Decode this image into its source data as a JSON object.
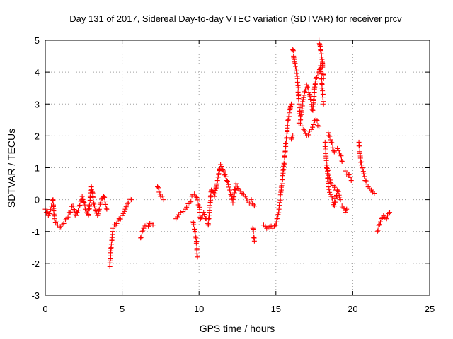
{
  "chart_data": {
    "type": "scatter",
    "title": "Day 131 of 2017, Sidereal Day-to-day VTEC variation (SDTVAR) for receiver prcv",
    "xlabel": "GPS time / hours",
    "ylabel": "SDTVAR / TECUs",
    "xlim": [
      0,
      25
    ],
    "ylim": [
      -3,
      5
    ],
    "xticks": [
      0,
      5,
      10,
      15,
      20,
      25
    ],
    "yticks": [
      -3,
      -2,
      -1,
      0,
      1,
      2,
      3,
      4,
      5
    ],
    "xtick_labels": [
      "0",
      "5",
      "10",
      "15",
      "20",
      "25"
    ],
    "ytick_labels": [
      "-3",
      "-2",
      "-1",
      "0",
      "1",
      "2",
      "3",
      "4",
      "5"
    ],
    "grid": true,
    "marker": "+",
    "color": "#ff0000",
    "series": [
      {
        "name": "SDTVAR",
        "segments": [
          [
            [
              0.0,
              -0.3
            ],
            [
              0.2,
              -0.5
            ],
            [
              0.4,
              -0.2
            ],
            [
              0.5,
              0.0
            ],
            [
              0.6,
              -0.6
            ],
            [
              0.8,
              -0.8
            ],
            [
              1.0,
              -0.85
            ],
            [
              1.2,
              -0.75
            ],
            [
              1.4,
              -0.6
            ],
            [
              1.6,
              -0.4
            ],
            [
              1.8,
              -0.2
            ],
            [
              2.0,
              -0.5
            ],
            [
              2.2,
              -0.2
            ],
            [
              2.4,
              0.1
            ],
            [
              2.6,
              -0.3
            ],
            [
              2.8,
              -0.5
            ],
            [
              3.0,
              0.4
            ],
            [
              3.2,
              -0.2
            ],
            [
              3.4,
              -0.5
            ],
            [
              3.6,
              -0.1
            ],
            [
              3.8,
              0.1
            ],
            [
              4.0,
              -0.3
            ]
          ],
          [
            [
              4.2,
              -2.1
            ],
            [
              4.3,
              -1.4
            ],
            [
              4.4,
              -0.9
            ],
            [
              4.6,
              -0.8
            ],
            [
              4.8,
              -0.6
            ],
            [
              5.0,
              -0.5
            ],
            [
              5.2,
              -0.3
            ],
            [
              5.4,
              -0.1
            ],
            [
              5.6,
              0.0
            ]
          ],
          [
            [
              6.2,
              -1.2
            ],
            [
              6.4,
              -0.9
            ],
            [
              6.6,
              -0.8
            ],
            [
              6.8,
              -0.75
            ],
            [
              7.0,
              -0.8
            ]
          ],
          [
            [
              7.3,
              0.4
            ],
            [
              7.5,
              0.1
            ],
            [
              7.7,
              0.0
            ]
          ],
          [
            [
              8.5,
              -0.6
            ],
            [
              8.8,
              -0.4
            ],
            [
              9.1,
              -0.3
            ],
            [
              9.4,
              -0.1
            ],
            [
              9.6,
              0.15
            ],
            [
              9.8,
              0.1
            ],
            [
              10.0,
              -0.2
            ],
            [
              10.1,
              -0.6
            ],
            [
              10.3,
              -0.4
            ],
            [
              10.6,
              -0.8
            ],
            [
              10.8,
              0.3
            ],
            [
              11.0,
              0.1
            ],
            [
              11.2,
              0.6
            ],
            [
              11.4,
              1.1
            ],
            [
              11.6,
              0.9
            ],
            [
              11.8,
              0.6
            ],
            [
              12.0,
              0.3
            ],
            [
              12.2,
              -0.1
            ],
            [
              12.4,
              0.5
            ],
            [
              12.6,
              0.3
            ],
            [
              12.8,
              0.2
            ],
            [
              13.0,
              0.1
            ],
            [
              13.2,
              -0.1
            ],
            [
              13.4,
              0.0
            ],
            [
              13.6,
              -0.2
            ]
          ],
          [
            [
              9.6,
              -0.7
            ],
            [
              9.8,
              -1.2
            ],
            [
              9.9,
              -1.8
            ]
          ],
          [
            [
              13.5,
              -0.9
            ],
            [
              13.6,
              -1.3
            ]
          ],
          [
            [
              14.2,
              -0.8
            ],
            [
              14.4,
              -0.9
            ],
            [
              14.6,
              -0.85
            ],
            [
              14.8,
              -0.9
            ],
            [
              15.0,
              -0.8
            ],
            [
              15.2,
              -0.3
            ],
            [
              15.4,
              0.5
            ],
            [
              15.6,
              1.5
            ],
            [
              15.8,
              2.5
            ],
            [
              16.0,
              3.0
            ]
          ],
          [
            [
              16.0,
              1.9
            ],
            [
              16.1,
              2.0
            ]
          ],
          [
            [
              16.1,
              4.7
            ],
            [
              16.2,
              4.4
            ],
            [
              16.4,
              3.8
            ],
            [
              16.5,
              3.0
            ],
            [
              16.6,
              2.5
            ],
            [
              16.8,
              3.2
            ],
            [
              17.0,
              3.6
            ],
            [
              17.2,
              3.3
            ],
            [
              17.4,
              2.8
            ],
            [
              17.6,
              3.8
            ],
            [
              17.8,
              4.0
            ],
            [
              17.9,
              4.2
            ],
            [
              18.0,
              3.5
            ],
            [
              18.1,
              3.0
            ]
          ],
          [
            [
              17.8,
              5.0
            ],
            [
              17.9,
              4.7
            ],
            [
              18.0,
              4.4
            ],
            [
              18.1,
              3.8
            ]
          ],
          [
            [
              16.5,
              2.4
            ],
            [
              16.8,
              2.2
            ],
            [
              17.0,
              2.0
            ],
            [
              17.3,
              2.2
            ],
            [
              17.6,
              2.5
            ],
            [
              17.8,
              2.3
            ]
          ],
          [
            [
              18.2,
              1.8
            ],
            [
              18.4,
              0.4
            ],
            [
              18.6,
              0.1
            ],
            [
              18.8,
              -0.2
            ],
            [
              19.0,
              0.3
            ],
            [
              19.2,
              0.0
            ]
          ],
          [
            [
              18.3,
              1.0
            ],
            [
              18.6,
              0.5
            ],
            [
              18.9,
              0.3
            ]
          ],
          [
            [
              18.4,
              2.1
            ],
            [
              18.6,
              1.8
            ],
            [
              18.8,
              1.5
            ]
          ],
          [
            [
              19.0,
              1.6
            ],
            [
              19.2,
              1.4
            ],
            [
              19.3,
              1.2
            ]
          ],
          [
            [
              19.3,
              -0.2
            ],
            [
              19.5,
              -0.4
            ],
            [
              19.6,
              -0.3
            ]
          ],
          [
            [
              19.5,
              0.9
            ],
            [
              19.7,
              0.8
            ],
            [
              19.9,
              0.6
            ]
          ],
          [
            [
              20.4,
              1.8
            ],
            [
              20.5,
              1.3
            ],
            [
              20.6,
              1.0
            ],
            [
              20.8,
              0.6
            ],
            [
              21.0,
              0.4
            ],
            [
              21.2,
              0.3
            ],
            [
              21.4,
              0.2
            ]
          ],
          [
            [
              21.6,
              -1.0
            ],
            [
              21.8,
              -0.7
            ],
            [
              22.0,
              -0.5
            ],
            [
              22.2,
              -0.6
            ],
            [
              22.4,
              -0.4
            ]
          ]
        ]
      }
    ]
  }
}
